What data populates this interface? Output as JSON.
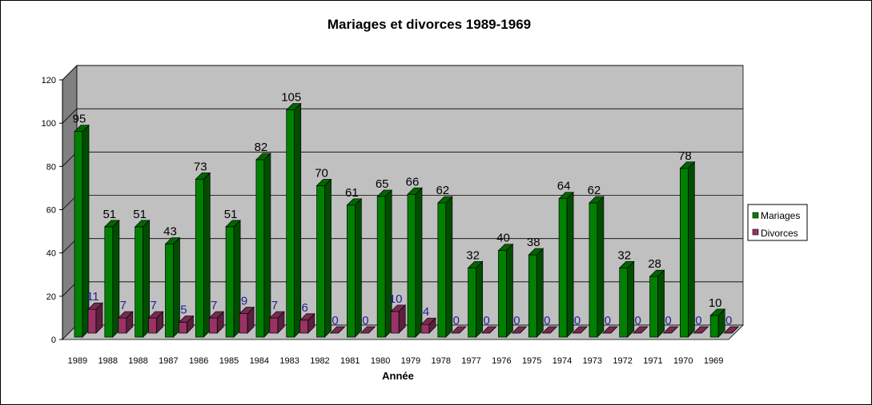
{
  "chart_data": {
    "type": "bar",
    "title": "Mariages et divorces 1989-1969",
    "xlabel": "Année",
    "ylabel": "",
    "ylim": [
      0,
      120
    ],
    "yticks": [
      0,
      20,
      40,
      60,
      80,
      100,
      120
    ],
    "grid": true,
    "legend_position": "right",
    "categories": [
      "1989",
      "1988",
      "1988",
      "1987",
      "1986",
      "1985",
      "1984",
      "1983",
      "1982",
      "1981",
      "1980",
      "1979",
      "1978",
      "1977",
      "1976",
      "1975",
      "1974",
      "1973",
      "1972",
      "1971",
      "1970",
      "1969"
    ],
    "series": [
      {
        "name": "Mariages",
        "color": "#008000",
        "values": [
          95,
          51,
          51,
          43,
          73,
          51,
          82,
          105,
          70,
          61,
          65,
          66,
          62,
          32,
          40,
          38,
          64,
          62,
          32,
          28,
          78,
          10
        ]
      },
      {
        "name": "Divorces",
        "color": "#993366",
        "values": [
          11,
          7,
          7,
          5,
          7,
          9,
          7,
          6,
          0,
          0,
          10,
          4,
          0,
          0,
          0,
          0,
          0,
          0,
          0,
          0,
          0,
          0
        ]
      }
    ]
  }
}
